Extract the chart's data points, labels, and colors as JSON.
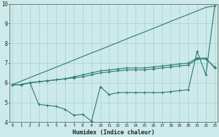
{
  "xlabel": "Humidex (Indice chaleur)",
  "x": [
    0,
    1,
    2,
    3,
    4,
    5,
    6,
    7,
    8,
    9,
    10,
    11,
    12,
    13,
    14,
    15,
    16,
    17,
    18,
    19,
    20,
    21,
    22,
    23
  ],
  "line_diag": [
    5.9,
    6.08,
    6.26,
    6.44,
    6.61,
    6.79,
    6.97,
    7.15,
    7.33,
    7.51,
    7.68,
    7.86,
    8.04,
    8.22,
    8.4,
    8.57,
    8.75,
    8.93,
    9.11,
    9.29,
    9.46,
    9.64,
    9.82,
    9.9
  ],
  "line1": [
    5.9,
    5.9,
    6.0,
    6.05,
    6.1,
    6.15,
    6.2,
    6.25,
    6.3,
    6.4,
    6.5,
    6.55,
    6.6,
    6.65,
    6.65,
    6.65,
    6.7,
    6.75,
    6.8,
    6.85,
    6.9,
    7.2,
    7.2,
    6.8
  ],
  "line2": [
    5.9,
    5.9,
    6.0,
    6.05,
    6.1,
    6.15,
    6.2,
    6.3,
    6.4,
    6.5,
    6.6,
    6.65,
    6.7,
    6.75,
    6.75,
    6.75,
    6.8,
    6.85,
    6.9,
    6.95,
    7.0,
    7.25,
    7.25,
    6.75
  ],
  "line3": [
    5.9,
    5.9,
    6.0,
    4.9,
    4.85,
    4.8,
    4.65,
    4.35,
    4.4,
    4.05,
    5.8,
    5.4,
    5.5,
    5.5,
    5.5,
    5.5,
    5.5,
    5.5,
    5.55,
    5.6,
    5.65,
    7.6,
    6.4,
    9.9
  ],
  "line_color": "#2d7a72",
  "bg_color": "#cceaea",
  "grid_color": "#aacccc",
  "ylim": [
    4.0,
    10.0
  ],
  "yticks": [
    4,
    5,
    6,
    7,
    8,
    9,
    10
  ],
  "xlim": [
    -0.3,
    23.3
  ]
}
